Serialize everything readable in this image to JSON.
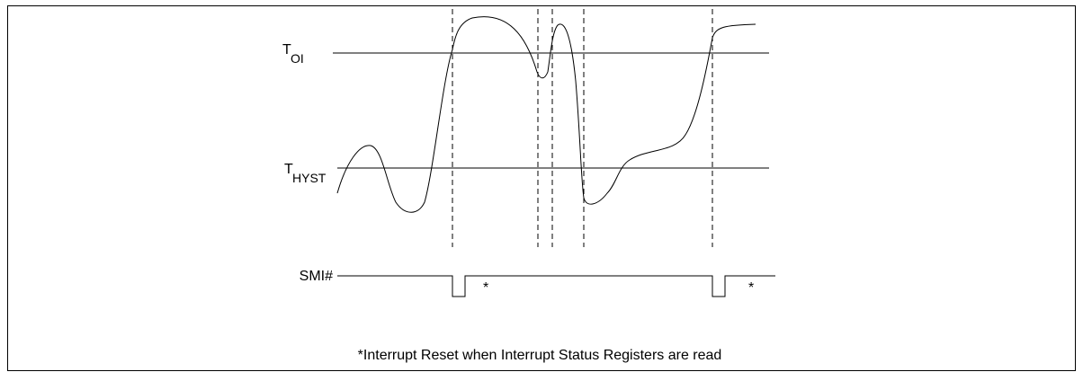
{
  "thresholds": [
    {
      "main": "T",
      "sub": "OI"
    },
    {
      "main": "T",
      "sub": "HYST"
    }
  ],
  "signal": "SMI#",
  "markers": [
    "*",
    "*"
  ],
  "caption": "*Interrupt Reset when Interrupt Status Registers are read"
}
